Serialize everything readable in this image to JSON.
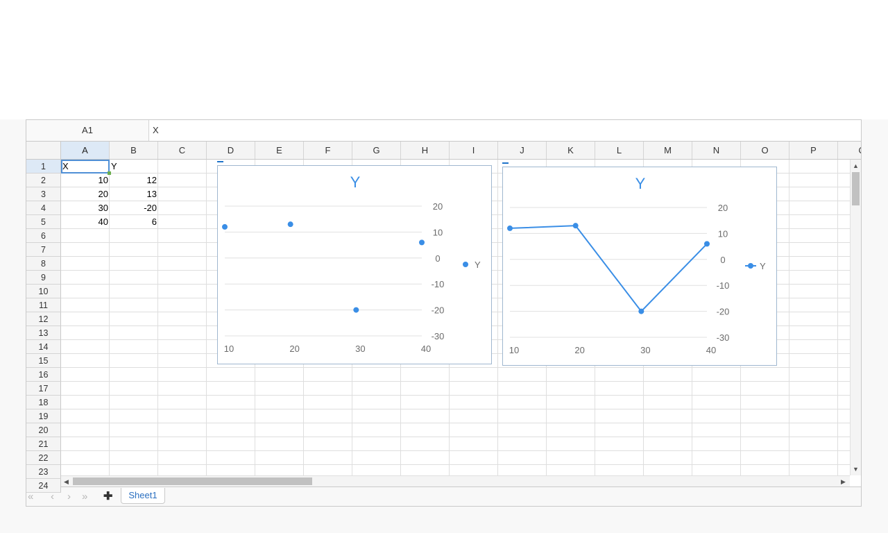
{
  "formula_bar": {
    "cell_ref": "A1",
    "content": "X"
  },
  "columns": [
    "A",
    "B",
    "C",
    "D",
    "E",
    "F",
    "G",
    "H",
    "I",
    "J",
    "K",
    "L",
    "M",
    "N",
    "O",
    "P",
    "Q"
  ],
  "rows": [
    "1",
    "2",
    "3",
    "4",
    "5",
    "6",
    "7",
    "8",
    "9",
    "10",
    "11",
    "12",
    "13",
    "14",
    "15",
    "16",
    "17",
    "18",
    "19",
    "20",
    "21",
    "22",
    "23",
    "24"
  ],
  "cells": {
    "A1": "X",
    "B1": "Y",
    "A2": "10",
    "B2": "12",
    "A3": "20",
    "B3": "13",
    "A4": "30",
    "B4": "-20",
    "A5": "40",
    "B5": "6"
  },
  "chart_data": [
    {
      "type": "scatter",
      "title": "Y",
      "x": [
        10,
        20,
        30,
        40
      ],
      "series": [
        {
          "name": "Y",
          "values": [
            12,
            13,
            -20,
            6
          ]
        }
      ],
      "xticks": [
        "10",
        "20",
        "30",
        "40"
      ],
      "yticks": [
        "20",
        "10",
        "0",
        "-10",
        "-20",
        "-30"
      ],
      "ylim": [
        -30,
        20
      ],
      "y_axis_side": "right",
      "grid": true,
      "legend": "right",
      "color": "#3a8ee6"
    },
    {
      "type": "line",
      "title": "Y",
      "x": [
        10,
        20,
        30,
        40
      ],
      "series": [
        {
          "name": "Y",
          "values": [
            12,
            13,
            -20,
            6
          ]
        }
      ],
      "xticks": [
        "10",
        "20",
        "30",
        "40"
      ],
      "yticks": [
        "20",
        "10",
        "0",
        "-10",
        "-20",
        "-30"
      ],
      "ylim": [
        -30,
        20
      ],
      "y_axis_side": "right",
      "grid": true,
      "legend": "right",
      "markers": true,
      "color": "#3a8ee6"
    }
  ],
  "sheets": [
    {
      "label": "Sheet1",
      "active": true
    }
  ],
  "icons": {
    "first": "double-chevron-left-icon",
    "prev": "chevron-left-icon",
    "next": "chevron-right-icon",
    "last": "double-chevron-right-icon",
    "add": "plus-icon"
  }
}
